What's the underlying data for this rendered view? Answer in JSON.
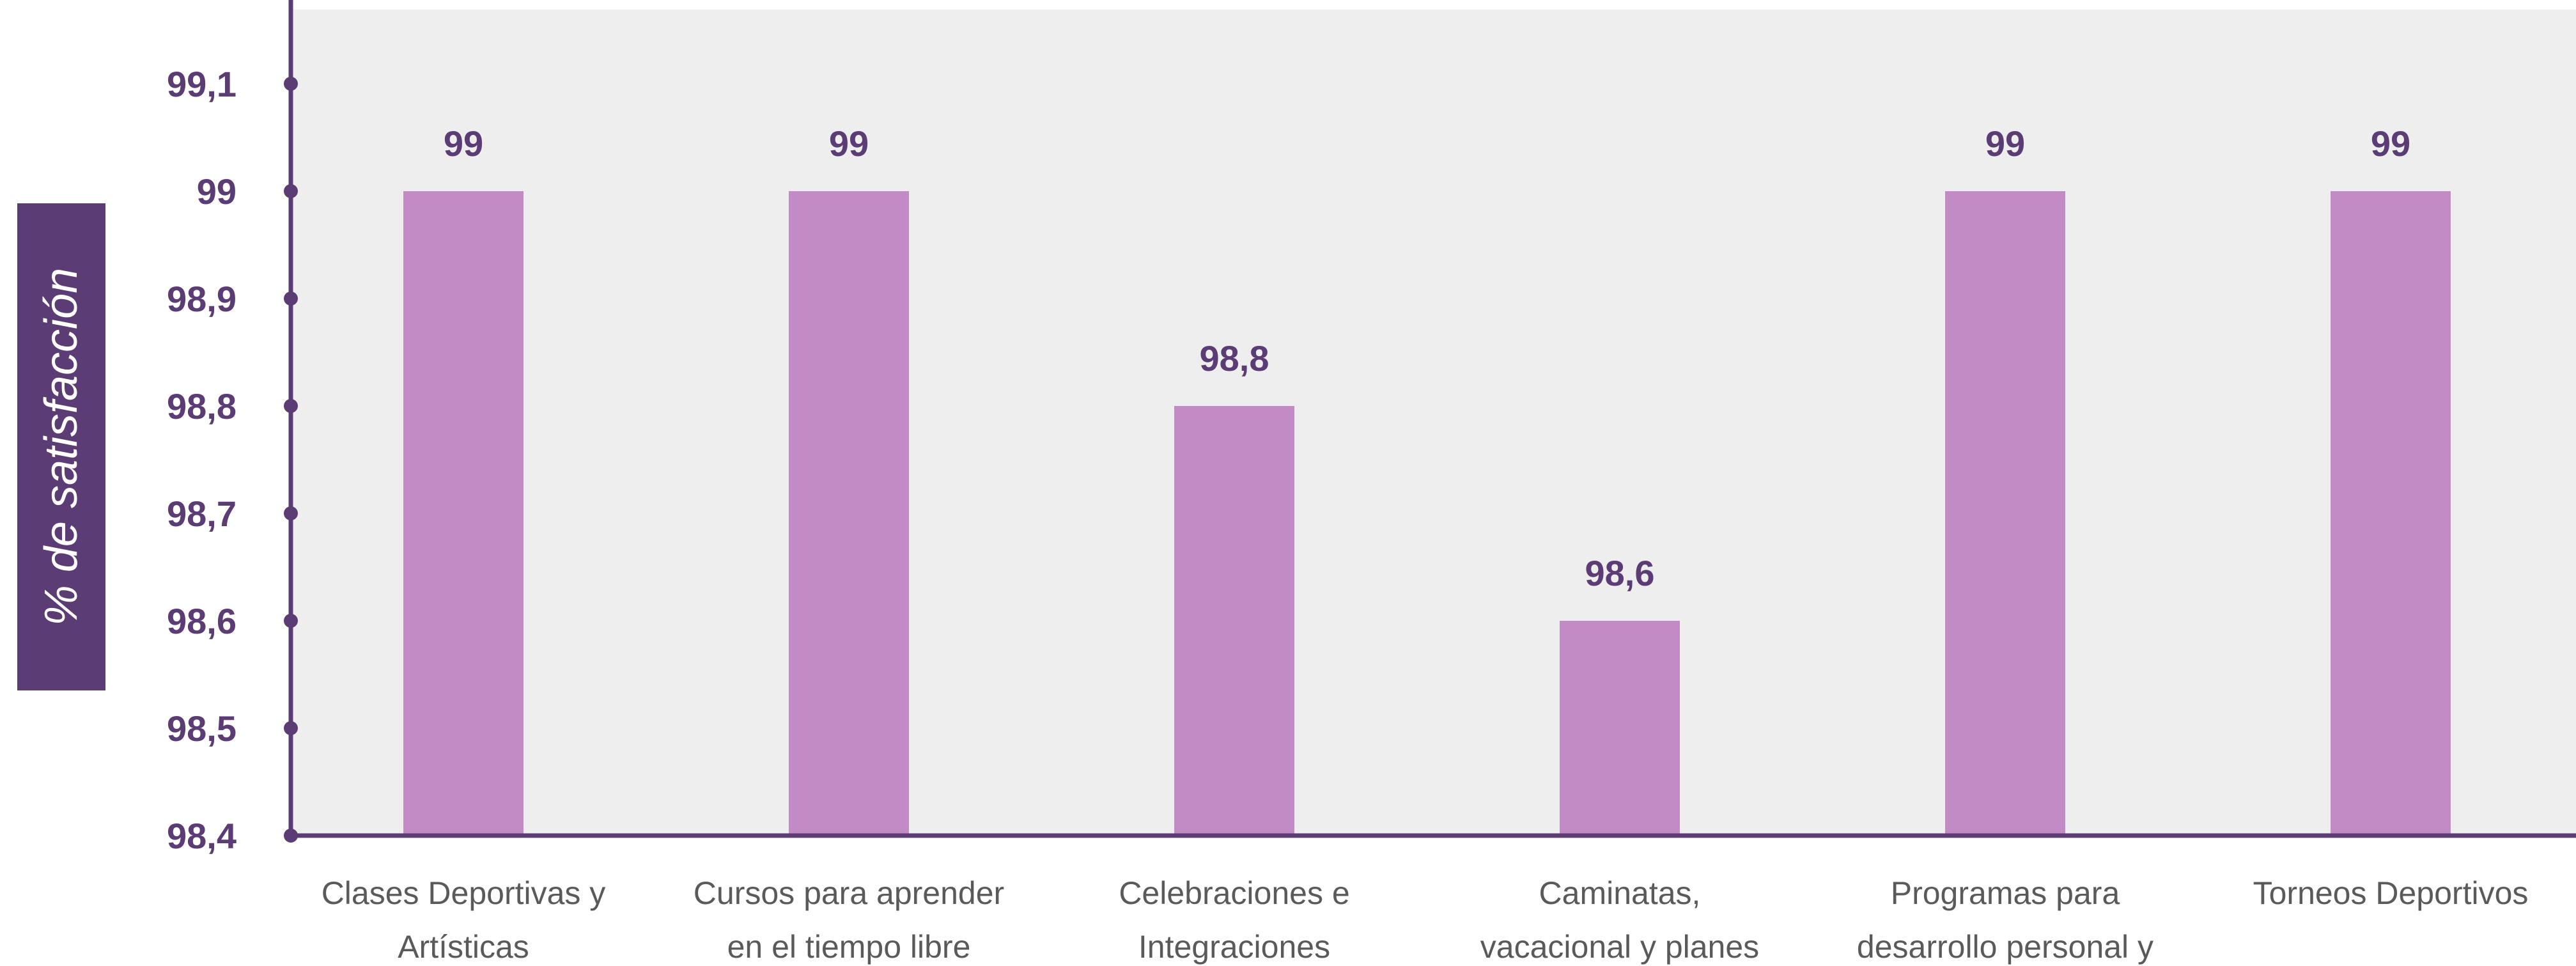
{
  "chart_data": {
    "type": "bar",
    "ylabel": "% de satisfacción",
    "xlabel": "",
    "ylim": [
      98.4,
      99.17
    ],
    "yticks": [
      98.4,
      98.5,
      98.6,
      98.7,
      98.8,
      98.9,
      99,
      99.1
    ],
    "ytick_labels": [
      "98,4",
      "98,5",
      "98,6",
      "98,7",
      "98,8",
      "98,9",
      "99",
      "99,1"
    ],
    "categories": [
      [
        "Clases Deportivas y",
        "Artísticas"
      ],
      [
        "Cursos para aprender",
        "en el tiempo libre"
      ],
      [
        "Celebraciones e",
        "Integraciones"
      ],
      [
        "Caminatas,",
        "vacacional y planes"
      ],
      [
        "Programas para",
        "desarrollo personal y"
      ],
      [
        "Torneos Deportivos"
      ]
    ],
    "values": [
      99,
      99,
      98.8,
      98.6,
      99,
      99
    ],
    "value_labels": [
      "99",
      "99",
      "98,8",
      "98,6",
      "99",
      "99"
    ],
    "grid": false,
    "legend": "none"
  },
  "colors": {
    "bar": "#c38bc5",
    "axis": "#5b3c74",
    "plot_background": "#efeeef",
    "ylabel_background": "#5b3c74"
  }
}
